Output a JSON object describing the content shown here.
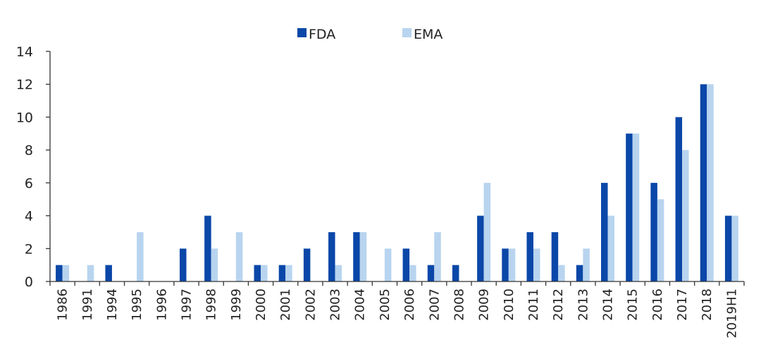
{
  "chart_data": {
    "type": "bar",
    "title": "",
    "xlabel": "",
    "ylabel": "",
    "ylim": [
      0,
      14
    ],
    "yticks": [
      0,
      2,
      4,
      6,
      8,
      10,
      12,
      14
    ],
    "grid": false,
    "legend_position": "top-center",
    "categories": [
      "1986",
      "1991",
      "1994",
      "1995",
      "1996",
      "1997",
      "1998",
      "1999",
      "2000",
      "2001",
      "2002",
      "2003",
      "2004",
      "2005",
      "2006",
      "2007",
      "2008",
      "2009",
      "2010",
      "2011",
      "2012",
      "2013",
      "2014",
      "2015",
      "2016",
      "2017",
      "2018",
      "2019H1"
    ],
    "series": [
      {
        "name": "FDA",
        "color": "#0a47a8",
        "values": [
          1,
          0,
          1,
          0,
          0,
          2,
          4,
          0,
          1,
          1,
          2,
          3,
          3,
          0,
          2,
          1,
          1,
          4,
          2,
          3,
          3,
          1,
          6,
          9,
          6,
          10,
          12,
          4
        ]
      },
      {
        "name": "EMA",
        "color": "#b8d4ef",
        "values": [
          1,
          1,
          0,
          3,
          0,
          0,
          2,
          3,
          1,
          1,
          0,
          1,
          3,
          2,
          1,
          3,
          0,
          6,
          2,
          2,
          1,
          2,
          4,
          9,
          5,
          8,
          12,
          4
        ]
      }
    ]
  }
}
